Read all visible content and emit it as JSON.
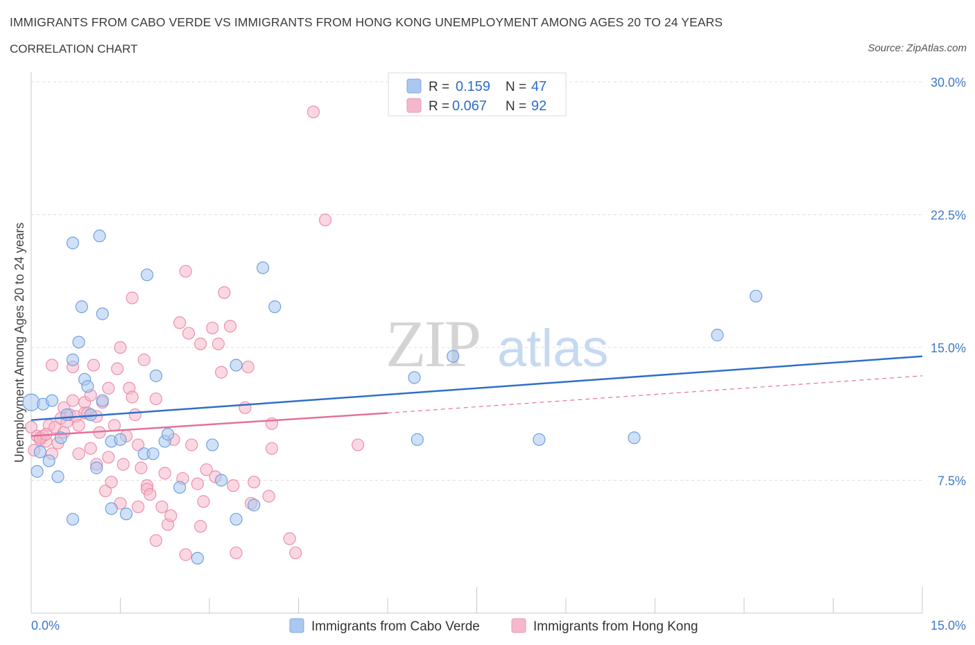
{
  "title": "IMMIGRANTS FROM CABO VERDE VS IMMIGRANTS FROM HONG KONG UNEMPLOYMENT AMONG AGES 20 TO 24 YEARS",
  "subtitle": "CORRELATION CHART",
  "source": "Source: ZipAtlas.com",
  "watermark": {
    "zip": "ZIP",
    "atlas": "atlas"
  },
  "legend": {
    "r_label": "R =",
    "n_label": "N =",
    "series": [
      {
        "r": "0.159",
        "n": "47",
        "color": "#aac8f0"
      },
      {
        "r": "0.067",
        "n": "92",
        "color": "#f5b8cb"
      }
    ]
  },
  "chart_data": {
    "type": "scatter",
    "title": "IMMIGRANTS FROM CABO VERDE VS IMMIGRANTS FROM HONG KONG UNEMPLOYMENT AMONG AGES 20 TO 24 YEARS",
    "xlabel": "",
    "ylabel": "Unemployment Among Ages 20 to 24 years",
    "xlim": [
      0,
      15
    ],
    "ylim": [
      0,
      30
    ],
    "x_tick_labels": [
      "0.0%",
      "15.0%"
    ],
    "y_tick_labels": [
      "7.5%",
      "15.0%",
      "22.5%",
      "30.0%"
    ],
    "y_ticks": [
      7.5,
      15.0,
      22.5,
      30.0
    ],
    "grid": true,
    "legend_position": "top-center",
    "series": [
      {
        "name": "Immigrants from Cabo Verde",
        "color": "#6fa0e0",
        "fill": "#aac8f0",
        "trend": {
          "x": [
            0,
            15
          ],
          "y": [
            10.9,
            14.5
          ],
          "dashed_from": null
        },
        "points": [
          [
            0.0,
            11.9
          ],
          [
            0.1,
            8.0
          ],
          [
            0.15,
            9.1
          ],
          [
            0.2,
            11.8
          ],
          [
            0.3,
            8.6
          ],
          [
            0.35,
            12.0
          ],
          [
            0.45,
            7.7
          ],
          [
            0.5,
            9.9
          ],
          [
            0.6,
            11.2
          ],
          [
            0.7,
            14.3
          ],
          [
            0.7,
            5.3
          ],
          [
            0.7,
            20.9
          ],
          [
            0.8,
            15.3
          ],
          [
            0.85,
            17.3
          ],
          [
            0.9,
            13.2
          ],
          [
            0.95,
            12.8
          ],
          [
            1.0,
            11.2
          ],
          [
            1.1,
            8.2
          ],
          [
            1.15,
            21.3
          ],
          [
            1.2,
            16.9
          ],
          [
            1.2,
            12.0
          ],
          [
            1.35,
            9.7
          ],
          [
            1.35,
            5.9
          ],
          [
            1.5,
            9.8
          ],
          [
            1.6,
            5.6
          ],
          [
            1.9,
            9.0
          ],
          [
            1.95,
            19.1
          ],
          [
            2.05,
            9.0
          ],
          [
            2.1,
            13.4
          ],
          [
            2.25,
            9.7
          ],
          [
            2.3,
            10.1
          ],
          [
            2.5,
            7.1
          ],
          [
            2.8,
            3.1
          ],
          [
            3.05,
            9.5
          ],
          [
            3.2,
            7.5
          ],
          [
            3.45,
            5.3
          ],
          [
            3.45,
            14.0
          ],
          [
            3.75,
            6.1
          ],
          [
            3.9,
            19.5
          ],
          [
            4.1,
            17.3
          ],
          [
            6.45,
            13.3
          ],
          [
            7.1,
            14.5
          ],
          [
            6.5,
            9.8
          ],
          [
            8.55,
            9.8
          ],
          [
            10.15,
            9.9
          ],
          [
            11.55,
            15.7
          ],
          [
            12.2,
            17.9
          ]
        ]
      },
      {
        "name": "Immigrants from Hong Kong",
        "color": "#ec8fab",
        "fill": "#f5b8cb",
        "trend": {
          "x": [
            0,
            6.0,
            15
          ],
          "y": [
            10.0,
            11.3,
            13.4
          ],
          "dashed_from": 6.0
        },
        "points": [
          [
            0.0,
            10.5
          ],
          [
            0.05,
            9.2
          ],
          [
            0.1,
            10.0
          ],
          [
            0.15,
            9.8
          ],
          [
            0.2,
            10.0
          ],
          [
            0.25,
            9.7
          ],
          [
            0.3,
            10.6
          ],
          [
            0.35,
            9.0
          ],
          [
            0.35,
            14.0
          ],
          [
            0.4,
            10.5
          ],
          [
            0.5,
            11.0
          ],
          [
            0.55,
            10.2
          ],
          [
            0.55,
            11.6
          ],
          [
            0.6,
            10.8
          ],
          [
            0.65,
            11.2
          ],
          [
            0.7,
            12.0
          ],
          [
            0.7,
            13.9
          ],
          [
            0.75,
            11.1
          ],
          [
            0.8,
            10.6
          ],
          [
            0.8,
            9.0
          ],
          [
            0.9,
            11.9
          ],
          [
            0.9,
            11.3
          ],
          [
            0.95,
            11.3
          ],
          [
            1.0,
            12.3
          ],
          [
            1.0,
            9.3
          ],
          [
            1.05,
            14.0
          ],
          [
            1.1,
            11.1
          ],
          [
            1.1,
            8.4
          ],
          [
            1.15,
            10.2
          ],
          [
            1.2,
            11.9
          ],
          [
            1.25,
            6.9
          ],
          [
            1.3,
            12.7
          ],
          [
            1.3,
            8.8
          ],
          [
            1.35,
            7.4
          ],
          [
            1.4,
            10.6
          ],
          [
            1.45,
            13.8
          ],
          [
            1.5,
            6.2
          ],
          [
            1.5,
            15.0
          ],
          [
            1.55,
            8.4
          ],
          [
            1.6,
            10.0
          ],
          [
            1.65,
            12.7
          ],
          [
            1.7,
            17.8
          ],
          [
            1.7,
            12.2
          ],
          [
            1.75,
            11.2
          ],
          [
            1.8,
            6.0
          ],
          [
            1.8,
            9.5
          ],
          [
            1.85,
            8.2
          ],
          [
            1.9,
            14.3
          ],
          [
            1.95,
            7.2
          ],
          [
            1.95,
            7.0
          ],
          [
            2.0,
            6.7
          ],
          [
            2.1,
            12.1
          ],
          [
            2.1,
            4.1
          ],
          [
            2.2,
            6.0
          ],
          [
            2.25,
            7.9
          ],
          [
            2.3,
            5.0
          ],
          [
            2.35,
            5.5
          ],
          [
            2.4,
            9.8
          ],
          [
            2.5,
            16.4
          ],
          [
            2.55,
            7.6
          ],
          [
            2.6,
            19.3
          ],
          [
            2.6,
            3.3
          ],
          [
            2.65,
            15.8
          ],
          [
            2.7,
            9.5
          ],
          [
            2.8,
            7.3
          ],
          [
            2.85,
            4.9
          ],
          [
            2.85,
            15.2
          ],
          [
            2.9,
            6.3
          ],
          [
            2.95,
            8.1
          ],
          [
            3.05,
            16.1
          ],
          [
            3.1,
            7.7
          ],
          [
            3.15,
            15.2
          ],
          [
            3.2,
            13.6
          ],
          [
            3.25,
            18.1
          ],
          [
            3.35,
            16.2
          ],
          [
            3.4,
            7.2
          ],
          [
            3.45,
            3.4
          ],
          [
            3.6,
            11.6
          ],
          [
            3.65,
            13.9
          ],
          [
            3.7,
            6.2
          ],
          [
            3.75,
            7.4
          ],
          [
            4.0,
            6.6
          ],
          [
            4.05,
            10.7
          ],
          [
            4.05,
            9.3
          ],
          [
            4.35,
            4.2
          ],
          [
            4.45,
            3.4
          ],
          [
            4.75,
            28.3
          ],
          [
            4.95,
            22.2
          ],
          [
            5.5,
            9.5
          ],
          [
            0.15,
            9.9
          ],
          [
            0.25,
            10.1
          ],
          [
            0.45,
            9.6
          ]
        ]
      }
    ]
  },
  "bottom_legend": [
    "Immigrants from Cabo Verde",
    "Immigrants from Hong Kong"
  ]
}
